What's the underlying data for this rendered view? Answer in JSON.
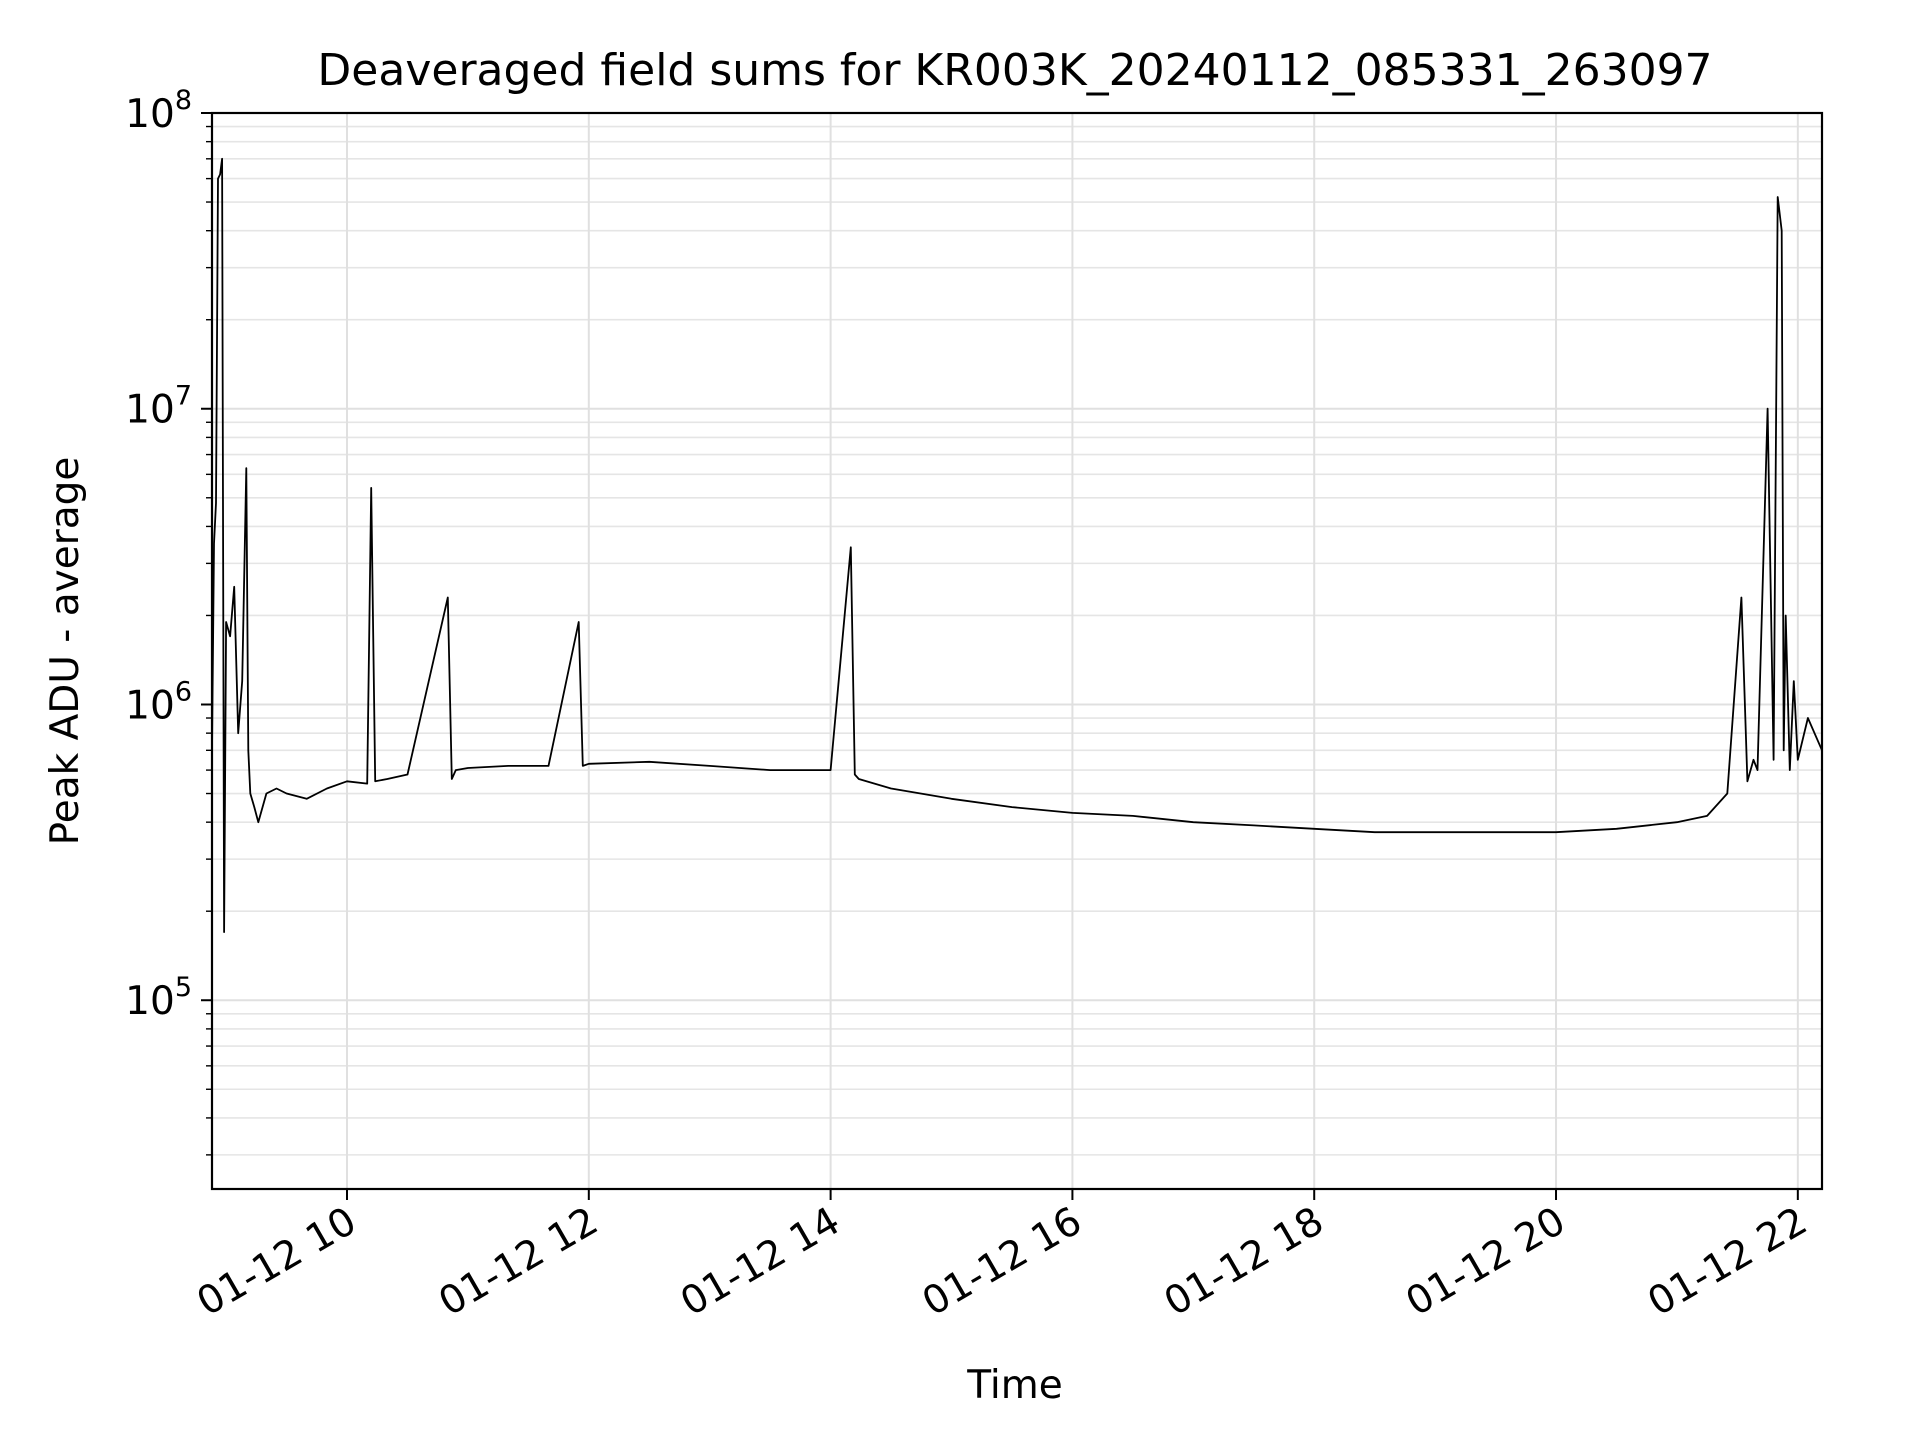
{
  "chart_data": {
    "type": "line",
    "title": "Deaveraged field sums for KR003K_20240112_085331_263097",
    "xlabel": "Time",
    "ylabel": "Peak ADU - average",
    "x_range": [
      "2024-01-12T08:53",
      "2024-01-12T22:12"
    ],
    "ylim": [
      23000,
      100000000
    ],
    "y_scale": "log",
    "grid": true,
    "grid_minor_y": true,
    "line_color": "#000000",
    "x_ticks": [
      {
        "hour": 10,
        "label": "01-12 10"
      },
      {
        "hour": 12,
        "label": "01-12 12"
      },
      {
        "hour": 14,
        "label": "01-12 14"
      },
      {
        "hour": 16,
        "label": "01-12 16"
      },
      {
        "hour": 18,
        "label": "01-12 18"
      },
      {
        "hour": 20,
        "label": "01-12 20"
      },
      {
        "hour": 22,
        "label": "01-12 22"
      }
    ],
    "y_ticks": [
      {
        "value": 100000,
        "base": "10",
        "exp": "5"
      },
      {
        "value": 1000000,
        "base": "10",
        "exp": "6"
      },
      {
        "value": 10000000,
        "base": "10",
        "exp": "7"
      },
      {
        "value": 100000000,
        "base": "10",
        "exp": "8"
      }
    ],
    "series": [
      {
        "x": [
          "08:53",
          "08:54",
          "08:55",
          "08:56",
          "08:57",
          "08:58",
          "08:59",
          "09:00",
          "09:02",
          "09:04",
          "09:06",
          "09:08",
          "09:10",
          "09:11",
          "09:12",
          "09:14",
          "09:16",
          "09:20",
          "09:25",
          "09:30",
          "09:40",
          "09:50",
          "10:00",
          "10:10",
          "10:12",
          "10:14",
          "10:20",
          "10:30",
          "10:50",
          "10:52",
          "10:54",
          "11:00",
          "11:20",
          "11:40",
          "11:55",
          "11:57",
          "12:00",
          "12:30",
          "13:00",
          "13:30",
          "14:00",
          "14:10",
          "14:12",
          "14:14",
          "14:30",
          "15:00",
          "15:30",
          "16:00",
          "16:30",
          "17:00",
          "17:30",
          "18:00",
          "18:30",
          "19:00",
          "19:30",
          "20:00",
          "20:30",
          "21:00",
          "21:15",
          "21:25",
          "21:32",
          "21:35",
          "21:38",
          "21:40",
          "21:45",
          "21:48",
          "21:50",
          "21:52",
          "21:53",
          "21:54",
          "21:56",
          "21:58",
          "22:00",
          "22:05",
          "22:12"
        ],
        "y": [
          700000,
          3500000,
          4800000,
          60000000,
          62000000,
          70000000,
          170000,
          1900000,
          1700000,
          2500000,
          800000,
          1200000,
          6300000,
          700000,
          500000,
          450000,
          400000,
          500000,
          520000,
          500000,
          480000,
          520000,
          550000,
          540000,
          5400000,
          550000,
          560000,
          580000,
          2300000,
          560000,
          600000,
          610000,
          620000,
          620000,
          1900000,
          620000,
          630000,
          640000,
          620000,
          600000,
          600000,
          3400000,
          580000,
          560000,
          520000,
          480000,
          450000,
          430000,
          420000,
          400000,
          390000,
          380000,
          370000,
          370000,
          370000,
          370000,
          380000,
          400000,
          420000,
          500000,
          2300000,
          550000,
          650000,
          600000,
          10000000,
          650000,
          52000000,
          40000000,
          700000,
          2000000,
          600000,
          1200000,
          650000,
          900000,
          700000
        ]
      }
    ]
  }
}
